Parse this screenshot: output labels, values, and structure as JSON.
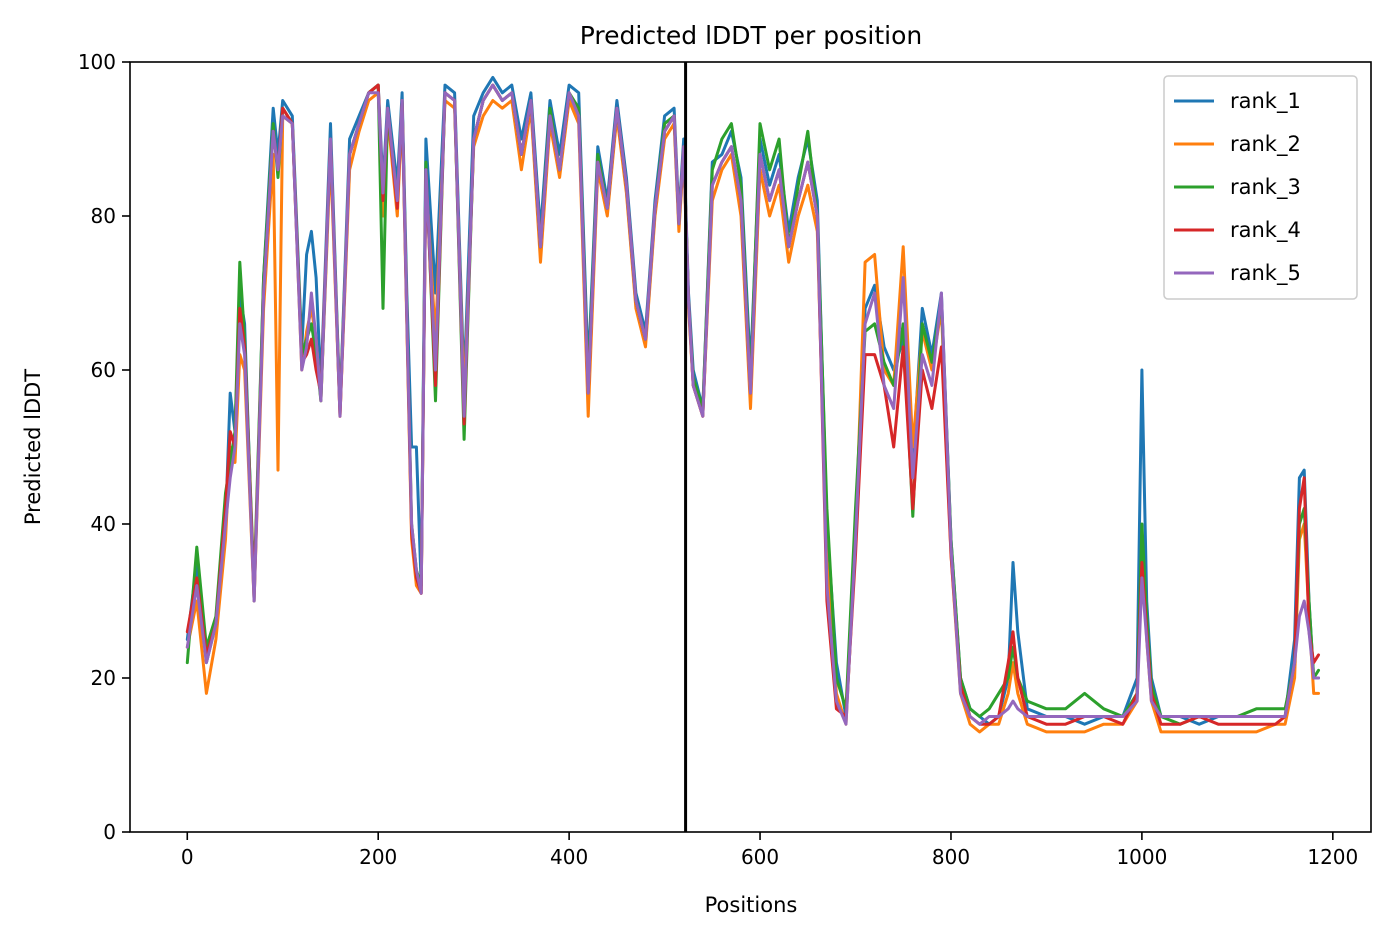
{
  "chart_data": {
    "type": "line",
    "title": "Predicted lDDT per position",
    "xlabel": "Positions",
    "ylabel": "Predicted lDDT",
    "xlim": [
      -60,
      1240
    ],
    "ylim": [
      0,
      100
    ],
    "xticks": [
      0,
      200,
      400,
      600,
      800,
      1000,
      1200
    ],
    "yticks": [
      0,
      20,
      40,
      60,
      80,
      100
    ],
    "grid": false,
    "legend_position": "top-right",
    "vline_x": 522,
    "series": [
      {
        "name": "rank_1",
        "color": "#1f77b4",
        "x": [
          0,
          10,
          20,
          30,
          40,
          45,
          50,
          55,
          60,
          70,
          80,
          90,
          95,
          100,
          110,
          120,
          125,
          130,
          135,
          140,
          150,
          160,
          170,
          180,
          190,
          200,
          205,
          210,
          220,
          225,
          230,
          235,
          240,
          245,
          250,
          260,
          270,
          280,
          290,
          300,
          310,
          320,
          330,
          340,
          350,
          360,
          370,
          380,
          390,
          400,
          410,
          420,
          430,
          440,
          450,
          460,
          470,
          480,
          490,
          500,
          510,
          515,
          520,
          525,
          530,
          540,
          550,
          560,
          570,
          580,
          590,
          600,
          610,
          620,
          630,
          640,
          650,
          660,
          670,
          680,
          690,
          700,
          710,
          720,
          730,
          740,
          750,
          760,
          770,
          780,
          790,
          800,
          810,
          820,
          830,
          840,
          850,
          860,
          865,
          870,
          880,
          900,
          920,
          940,
          960,
          980,
          995,
          1000,
          1005,
          1010,
          1020,
          1040,
          1060,
          1080,
          1100,
          1120,
          1140,
          1150,
          1160,
          1165,
          1170,
          1175,
          1180,
          1185
        ],
        "values": [
          25,
          35,
          22,
          27,
          40,
          57,
          52,
          70,
          66,
          30,
          72,
          94,
          88,
          95,
          93,
          63,
          75,
          78,
          72,
          58,
          92,
          55,
          90,
          93,
          96,
          97,
          84,
          95,
          84,
          96,
          70,
          50,
          50,
          32,
          90,
          70,
          97,
          96,
          58,
          93,
          96,
          98,
          96,
          97,
          90,
          96,
          78,
          95,
          88,
          97,
          96,
          60,
          89,
          82,
          95,
          85,
          70,
          65,
          82,
          93,
          94,
          80,
          90,
          70,
          60,
          55,
          87,
          88,
          91,
          85,
          60,
          90,
          84,
          88,
          78,
          85,
          90,
          82,
          40,
          22,
          15,
          40,
          68,
          71,
          63,
          60,
          64,
          48,
          68,
          62,
          70,
          38,
          20,
          16,
          15,
          14,
          15,
          20,
          35,
          26,
          16,
          15,
          15,
          14,
          15,
          15,
          20,
          60,
          30,
          20,
          15,
          15,
          14,
          15,
          15,
          15,
          15,
          15,
          25,
          46,
          47,
          30,
          20,
          20
        ]
      },
      {
        "name": "rank_2",
        "color": "#ff7f0e",
        "x": [
          0,
          10,
          20,
          30,
          40,
          45,
          50,
          55,
          60,
          70,
          80,
          90,
          95,
          100,
          110,
          120,
          125,
          130,
          135,
          140,
          150,
          160,
          170,
          180,
          190,
          200,
          205,
          210,
          220,
          225,
          230,
          235,
          240,
          245,
          250,
          260,
          270,
          280,
          290,
          300,
          310,
          320,
          330,
          340,
          350,
          360,
          370,
          380,
          390,
          400,
          410,
          420,
          430,
          440,
          450,
          460,
          470,
          480,
          490,
          500,
          510,
          515,
          520,
          525,
          530,
          540,
          550,
          560,
          570,
          580,
          590,
          600,
          610,
          620,
          630,
          640,
          650,
          660,
          670,
          680,
          690,
          700,
          710,
          720,
          730,
          740,
          750,
          760,
          770,
          780,
          790,
          800,
          810,
          820,
          830,
          840,
          850,
          860,
          865,
          870,
          880,
          900,
          920,
          940,
          960,
          980,
          995,
          1000,
          1005,
          1010,
          1020,
          1040,
          1060,
          1080,
          1100,
          1120,
          1140,
          1150,
          1160,
          1165,
          1170,
          1175,
          1180,
          1185
        ],
        "values": [
          24,
          30,
          18,
          25,
          38,
          50,
          48,
          62,
          60,
          30,
          68,
          88,
          47,
          93,
          92,
          60,
          65,
          68,
          64,
          56,
          88,
          54,
          86,
          91,
          95,
          96,
          80,
          93,
          80,
          94,
          66,
          38,
          32,
          31,
          85,
          64,
          95,
          94,
          56,
          89,
          93,
          95,
          94,
          95,
          86,
          94,
          74,
          92,
          85,
          95,
          92,
          54,
          86,
          80,
          93,
          83,
          68,
          63,
          80,
          90,
          92,
          78,
          88,
          68,
          58,
          54,
          82,
          86,
          88,
          80,
          55,
          86,
          80,
          84,
          74,
          80,
          84,
          78,
          35,
          18,
          14,
          38,
          74,
          75,
          60,
          58,
          76,
          50,
          65,
          60,
          68,
          36,
          18,
          14,
          13,
          14,
          14,
          18,
          22,
          18,
          14,
          13,
          13,
          13,
          14,
          14,
          17,
          38,
          25,
          17,
          13,
          13,
          13,
          13,
          13,
          13,
          14,
          14,
          20,
          38,
          40,
          28,
          18,
          18
        ]
      },
      {
        "name": "rank_3",
        "color": "#2ca02c",
        "x": [
          0,
          10,
          20,
          30,
          40,
          45,
          50,
          55,
          60,
          70,
          80,
          90,
          95,
          100,
          110,
          120,
          125,
          130,
          135,
          140,
          150,
          160,
          170,
          180,
          190,
          200,
          205,
          210,
          220,
          225,
          230,
          235,
          240,
          245,
          250,
          260,
          270,
          280,
          290,
          300,
          310,
          320,
          330,
          340,
          350,
          360,
          370,
          380,
          390,
          400,
          410,
          420,
          430,
          440,
          450,
          460,
          470,
          480,
          490,
          500,
          510,
          515,
          520,
          525,
          530,
          540,
          550,
          560,
          570,
          580,
          590,
          600,
          610,
          620,
          630,
          640,
          650,
          660,
          670,
          680,
          690,
          700,
          710,
          720,
          730,
          740,
          750,
          760,
          770,
          780,
          790,
          800,
          810,
          820,
          830,
          840,
          850,
          860,
          865,
          870,
          880,
          900,
          920,
          940,
          960,
          980,
          995,
          1000,
          1005,
          1010,
          1020,
          1040,
          1060,
          1080,
          1100,
          1120,
          1140,
          1150,
          1160,
          1165,
          1170,
          1175,
          1180,
          1185
        ],
        "values": [
          22,
          37,
          24,
          28,
          44,
          48,
          52,
          74,
          64,
          32,
          72,
          92,
          85,
          94,
          92,
          62,
          64,
          66,
          62,
          56,
          90,
          55,
          88,
          92,
          96,
          97,
          68,
          94,
          82,
          95,
          68,
          40,
          34,
          32,
          87,
          56,
          96,
          95,
          51,
          90,
          95,
          97,
          95,
          96,
          88,
          95,
          76,
          94,
          86,
          96,
          94,
          58,
          88,
          81,
          94,
          84,
          69,
          64,
          81,
          92,
          93,
          79,
          89,
          69,
          59,
          55,
          86,
          90,
          92,
          84,
          58,
          92,
          86,
          90,
          76,
          84,
          91,
          80,
          42,
          20,
          16,
          42,
          65,
          66,
          61,
          58,
          66,
          41,
          66,
          61,
          69,
          38,
          20,
          16,
          15,
          16,
          18,
          20,
          24,
          20,
          17,
          16,
          16,
          18,
          16,
          15,
          18,
          40,
          28,
          19,
          15,
          14,
          15,
          15,
          15,
          16,
          16,
          16,
          22,
          40,
          42,
          30,
          20,
          21
        ]
      },
      {
        "name": "rank_4",
        "color": "#d62728",
        "x": [
          0,
          10,
          20,
          30,
          40,
          45,
          50,
          55,
          60,
          70,
          80,
          90,
          95,
          100,
          110,
          120,
          125,
          130,
          135,
          140,
          150,
          160,
          170,
          180,
          190,
          200,
          205,
          210,
          220,
          225,
          230,
          235,
          240,
          245,
          250,
          260,
          270,
          280,
          290,
          300,
          310,
          320,
          330,
          340,
          350,
          360,
          370,
          380,
          390,
          400,
          410,
          420,
          430,
          440,
          450,
          460,
          470,
          480,
          490,
          500,
          510,
          515,
          520,
          525,
          530,
          540,
          550,
          560,
          570,
          580,
          590,
          600,
          610,
          620,
          630,
          640,
          650,
          660,
          670,
          680,
          690,
          700,
          710,
          720,
          730,
          740,
          750,
          760,
          770,
          780,
          790,
          800,
          810,
          820,
          830,
          840,
          850,
          860,
          865,
          870,
          880,
          900,
          920,
          940,
          960,
          980,
          995,
          1000,
          1005,
          1010,
          1020,
          1040,
          1060,
          1080,
          1100,
          1120,
          1140,
          1150,
          1160,
          1165,
          1170,
          1175,
          1180,
          1185
        ],
        "values": [
          26,
          33,
          23,
          27,
          42,
          52,
          50,
          68,
          63,
          31,
          70,
          91,
          86,
          94,
          92,
          61,
          62,
          64,
          60,
          57,
          90,
          54,
          88,
          92,
          96,
          97,
          82,
          94,
          81,
          95,
          67,
          39,
          33,
          31,
          86,
          58,
          96,
          95,
          53,
          90,
          95,
          97,
          95,
          96,
          88,
          95,
          76,
          93,
          86,
          96,
          93,
          57,
          87,
          81,
          94,
          84,
          69,
          64,
          81,
          91,
          93,
          79,
          89,
          69,
          58,
          54,
          84,
          87,
          89,
          82,
          57,
          88,
          82,
          86,
          76,
          82,
          87,
          80,
          30,
          16,
          15,
          36,
          62,
          62,
          58,
          50,
          63,
          42,
          60,
          55,
          63,
          36,
          19,
          15,
          14,
          14,
          15,
          22,
          26,
          20,
          15,
          14,
          14,
          15,
          15,
          14,
          18,
          35,
          26,
          18,
          14,
          14,
          15,
          14,
          14,
          14,
          14,
          15,
          22,
          42,
          46,
          26,
          22,
          23
        ]
      },
      {
        "name": "rank_5",
        "color": "#9467bd",
        "x": [
          0,
          10,
          20,
          30,
          40,
          45,
          50,
          55,
          60,
          70,
          80,
          90,
          95,
          100,
          110,
          120,
          125,
          130,
          135,
          140,
          150,
          160,
          170,
          180,
          190,
          200,
          205,
          210,
          220,
          225,
          230,
          235,
          240,
          245,
          250,
          260,
          270,
          280,
          290,
          300,
          310,
          320,
          330,
          340,
          350,
          360,
          370,
          380,
          390,
          400,
          410,
          420,
          430,
          440,
          450,
          460,
          470,
          480,
          490,
          500,
          510,
          515,
          520,
          525,
          530,
          540,
          550,
          560,
          570,
          580,
          590,
          600,
          610,
          620,
          630,
          640,
          650,
          660,
          670,
          680,
          690,
          700,
          710,
          720,
          730,
          740,
          750,
          760,
          770,
          780,
          790,
          800,
          810,
          820,
          830,
          840,
          850,
          860,
          865,
          870,
          880,
          900,
          920,
          940,
          960,
          980,
          995,
          1000,
          1005,
          1010,
          1020,
          1040,
          1060,
          1080,
          1100,
          1120,
          1140,
          1150,
          1160,
          1165,
          1170,
          1175,
          1180,
          1185
        ],
        "values": [
          24,
          32,
          22,
          27,
          40,
          46,
          50,
          66,
          62,
          30,
          70,
          91,
          86,
          93,
          92,
          60,
          63,
          70,
          64,
          56,
          90,
          54,
          88,
          92,
          96,
          96,
          83,
          94,
          82,
          95,
          67,
          40,
          34,
          31,
          86,
          60,
          96,
          95,
          54,
          90,
          95,
          97,
          95,
          96,
          88,
          95,
          76,
          93,
          86,
          96,
          93,
          57,
          87,
          81,
          94,
          84,
          69,
          64,
          81,
          91,
          93,
          79,
          89,
          69,
          58,
          54,
          84,
          87,
          89,
          82,
          57,
          88,
          82,
          86,
          76,
          82,
          87,
          80,
          32,
          17,
          14,
          38,
          66,
          70,
          58,
          55,
          72,
          46,
          62,
          58,
          70,
          37,
          18,
          15,
          14,
          15,
          15,
          16,
          17,
          16,
          15,
          15,
          15,
          15,
          15,
          15,
          17,
          33,
          25,
          17,
          15,
          15,
          15,
          15,
          15,
          15,
          15,
          15,
          22,
          28,
          30,
          26,
          20,
          20
        ]
      }
    ]
  }
}
